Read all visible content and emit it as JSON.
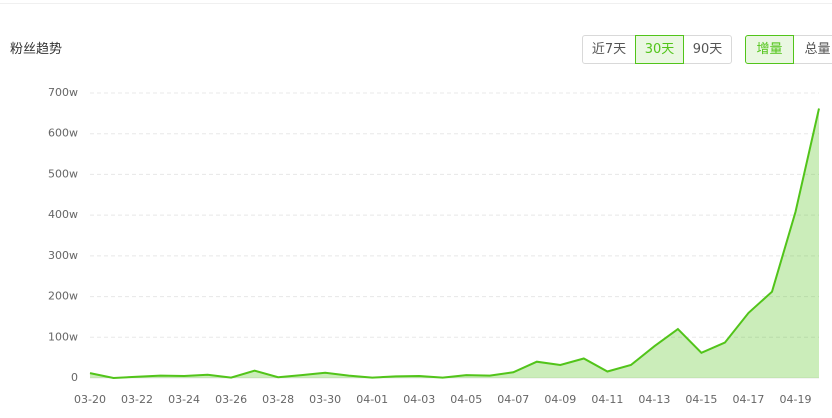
{
  "header": {
    "title": "粉丝趋势"
  },
  "range_buttons": [
    "近7天",
    "30天",
    "90天"
  ],
  "mode_buttons": [
    "增量",
    "总量"
  ],
  "chart_data": {
    "type": "area",
    "categories": [
      "03-20",
      null,
      "03-22",
      null,
      "03-24",
      null,
      "03-26",
      null,
      "03-28",
      null,
      "03-30",
      null,
      "04-01",
      null,
      "04-03",
      null,
      "04-05",
      null,
      "04-07",
      null,
      "04-09",
      null,
      "04-11",
      null,
      "04-13",
      null,
      "04-15",
      null,
      "04-17",
      null,
      "04-19",
      null
    ],
    "values": [
      12,
      0,
      3,
      6,
      5,
      8,
      1,
      18,
      2,
      7,
      13,
      6,
      1,
      4,
      5,
      1,
      7,
      6,
      14,
      40,
      32,
      48,
      16,
      32,
      78,
      120,
      62,
      87,
      160,
      212,
      408,
      662
    ],
    "color": "#52c41a",
    "ylim": [
      0,
      700
    ],
    "yticks": [
      0,
      {
        "value": 100,
        "label": "100w"
      },
      {
        "value": 200,
        "label": "200w"
      },
      {
        "value": 300,
        "label": "300w"
      },
      {
        "value": 400,
        "label": "400w"
      },
      {
        "value": 500,
        "label": "500w"
      },
      {
        "value": 600,
        "label": "600w"
      },
      {
        "value": 700,
        "label": "700w"
      }
    ],
    "grid": true
  }
}
